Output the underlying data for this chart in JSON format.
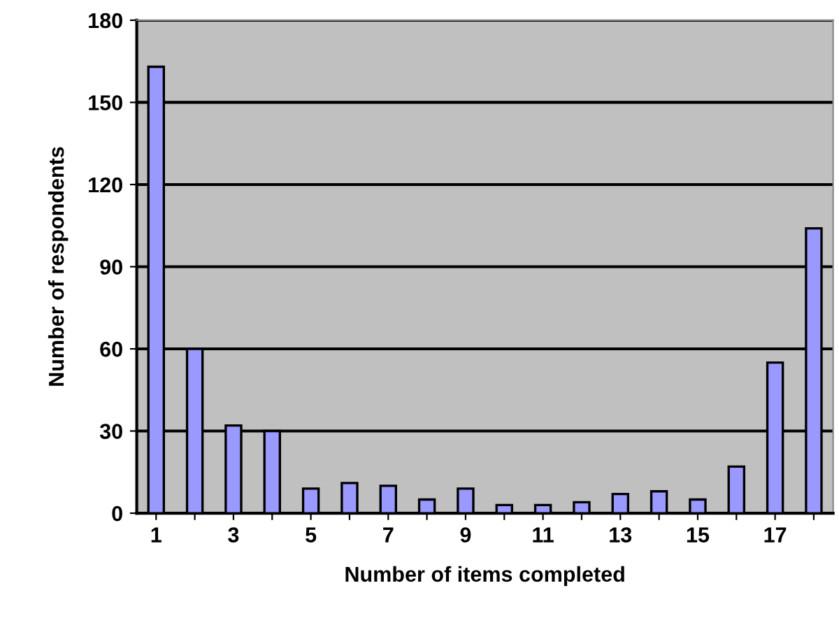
{
  "chart_data": {
    "type": "bar",
    "xlabel": "Number of items completed",
    "ylabel": "Number of respondents",
    "categories": [
      "1",
      null,
      "3",
      null,
      "5",
      null,
      "7",
      null,
      "9",
      null,
      "11",
      null,
      "13",
      null,
      "15",
      null,
      "17",
      null
    ],
    "values": [
      163,
      60,
      32,
      30,
      9,
      11,
      10,
      5,
      9,
      3,
      3,
      4,
      7,
      8,
      5,
      17,
      55,
      104
    ],
    "color": "#9999ff",
    "ylim": [
      0,
      180
    ],
    "yticks": [
      0,
      30,
      60,
      90,
      120,
      150,
      180
    ],
    "grid": "y",
    "legend": false
  }
}
